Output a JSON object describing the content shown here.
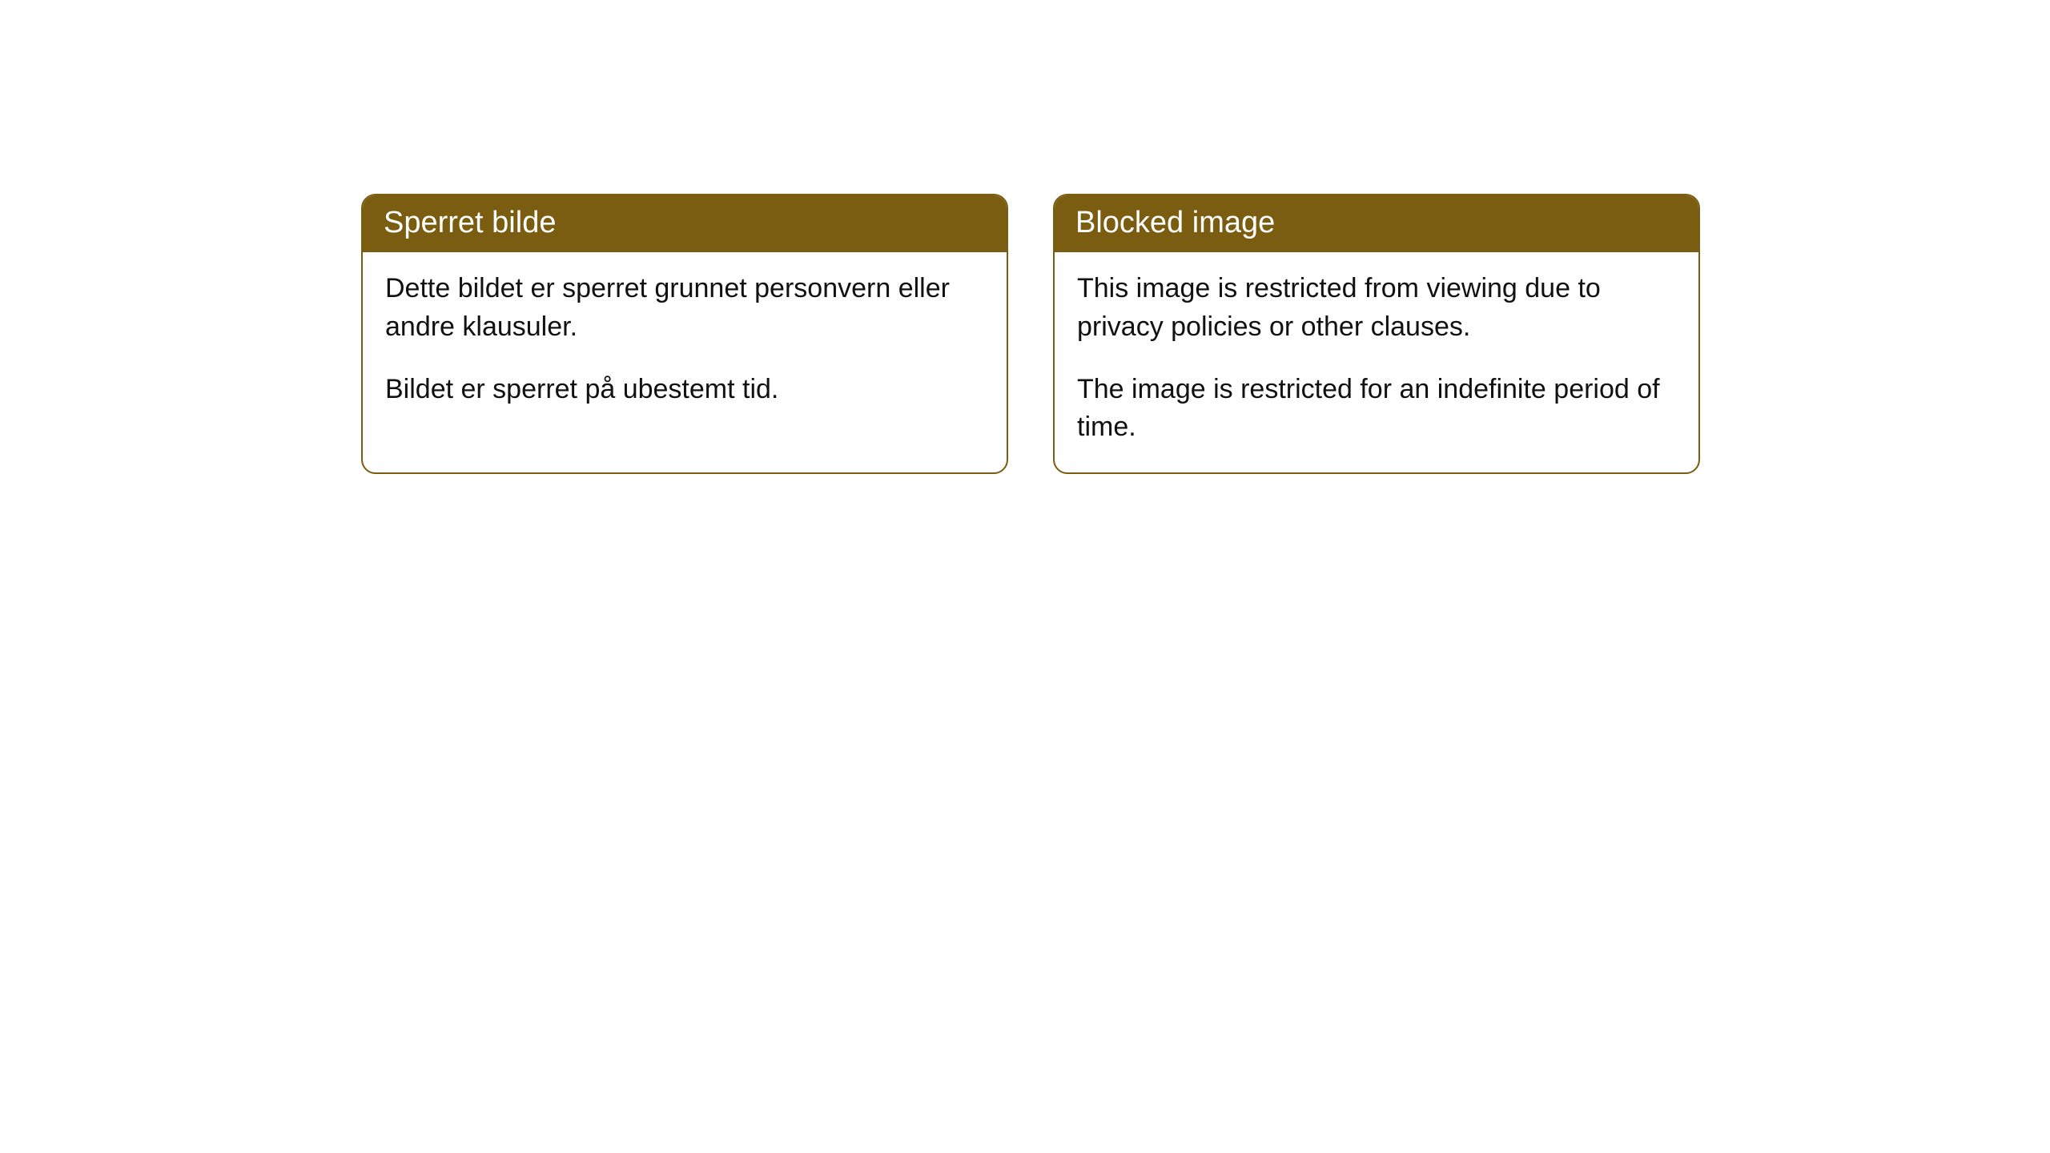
{
  "cards": [
    {
      "title": "Sperret bilde",
      "paragraph1": "Dette bildet er sperret grunnet personvern eller andre klausuler.",
      "paragraph2": "Bildet er sperret på ubestemt tid."
    },
    {
      "title": "Blocked image",
      "paragraph1": "This image is restricted from viewing due to privacy policies or other clauses.",
      "paragraph2": "The image is restricted for an indefinite period of time."
    }
  ],
  "style": {
    "header_bg": "#7a5d10",
    "header_text_color": "#ffffff",
    "border_color": "#7a5d10",
    "body_text_color": "#111111",
    "card_bg": "#ffffff",
    "page_bg": "#ffffff",
    "border_radius": 18,
    "header_fontsize": 38,
    "body_fontsize": 34
  }
}
